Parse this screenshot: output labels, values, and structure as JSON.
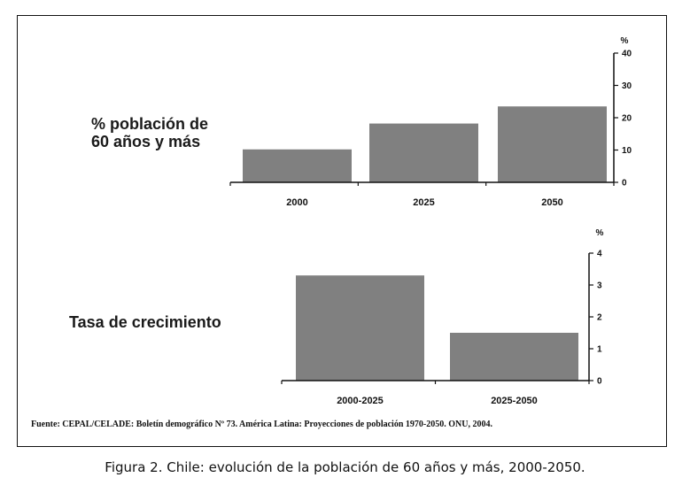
{
  "chart_data": [
    {
      "type": "bar",
      "title": "% población de\n60 años y más",
      "unit": "%",
      "categories": [
        "2000",
        "2025",
        "2050"
      ],
      "values": [
        10.2,
        18.2,
        23.5
      ],
      "ylim": [
        0,
        40
      ],
      "yticks": [
        0,
        10,
        20,
        30,
        40
      ],
      "bar_color": "#808080",
      "axis_side": "right"
    },
    {
      "type": "bar",
      "title": "Tasa de crecimiento",
      "unit": "%",
      "categories": [
        "2000-2025",
        "2025-2050"
      ],
      "values": [
        3.3,
        1.5
      ],
      "ylim": [
        0,
        4
      ],
      "yticks": [
        0,
        1,
        2,
        3,
        4
      ],
      "bar_color": "#808080",
      "axis_side": "right"
    }
  ],
  "source_note": "Fuente: CEPAL/CELADE: Boletín demográfico Nº 73. América Latina: Proyecciones de población 1970-2050. ONU, 2004.",
  "caption": "Figura 2. Chile: evolución de la población de 60 años y más, 2000-2050."
}
